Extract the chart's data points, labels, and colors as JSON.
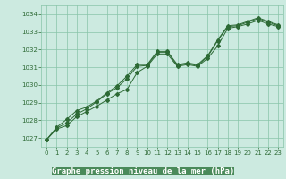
{
  "title": "Graphe pression niveau de la mer (hPa)",
  "bg_color": "#cceae0",
  "grid_color": "#88c4a8",
  "line_color": "#2d6a35",
  "marker_color": "#2d6a35",
  "xlabel_bg": "#4a8a5a",
  "xlabel_fg": "#ffffff",
  "xlim": [
    -0.5,
    23.5
  ],
  "ylim": [
    1026.5,
    1034.5
  ],
  "yticks": [
    1027,
    1028,
    1029,
    1030,
    1031,
    1032,
    1033,
    1034
  ],
  "xticks": [
    0,
    1,
    2,
    3,
    4,
    5,
    6,
    7,
    8,
    9,
    10,
    11,
    12,
    13,
    14,
    15,
    16,
    17,
    18,
    19,
    20,
    21,
    22,
    23
  ],
  "series1": [
    1026.9,
    1027.5,
    1027.7,
    1028.2,
    1028.5,
    1028.8,
    1029.15,
    1029.5,
    1029.75,
    1030.7,
    1031.05,
    1031.75,
    1031.75,
    1031.05,
    1031.15,
    1031.05,
    1031.5,
    1032.2,
    1033.2,
    1033.3,
    1033.45,
    1033.65,
    1033.45,
    1033.3
  ],
  "series2": [
    1026.9,
    1027.55,
    1027.85,
    1028.35,
    1028.65,
    1029.05,
    1029.5,
    1029.85,
    1030.35,
    1031.05,
    1031.1,
    1031.85,
    1031.85,
    1031.1,
    1031.2,
    1031.1,
    1031.6,
    1032.5,
    1033.3,
    1033.35,
    1033.55,
    1033.75,
    1033.55,
    1033.35
  ],
  "series3": [
    1026.9,
    1027.6,
    1028.05,
    1028.55,
    1028.75,
    1029.1,
    1029.55,
    1029.95,
    1030.5,
    1031.15,
    1031.15,
    1031.9,
    1031.9,
    1031.15,
    1031.25,
    1031.15,
    1031.65,
    1032.55,
    1033.35,
    1033.4,
    1033.6,
    1033.8,
    1033.6,
    1033.4
  ]
}
